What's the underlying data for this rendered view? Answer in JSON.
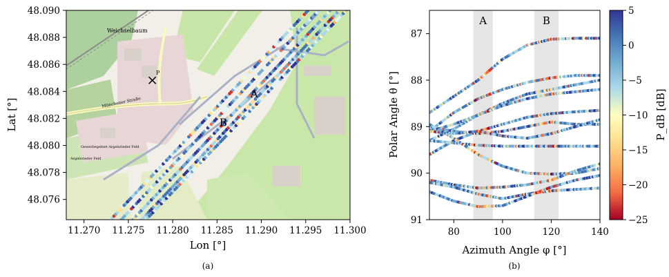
{
  "panel_a": {
    "caption": "(a)",
    "annotations": [
      "A",
      "B"
    ],
    "map_labels": [
      "Weichselbaum",
      "Münchener Straße",
      "Gewerbegebiet Argelsrieder Feld",
      "Argelsrieder Feld",
      "P"
    ]
  },
  "panel_b": {
    "caption": "(b)",
    "shaded_regions": [
      {
        "label": "A",
        "phi_range": [
          88,
          96
        ]
      },
      {
        "label": "B",
        "phi_range": [
          113,
          123
        ]
      }
    ]
  },
  "colors": {
    "marker": "#e8231d",
    "shade": "#e5e5e5",
    "map_green": "#c9e7a8",
    "map_residential": "#e7d7d7",
    "runway": "#aab0c6"
  },
  "chart_data": [
    {
      "type": "scatter",
      "subplot": "a",
      "xlabel": "Lon [°]",
      "ylabel": "Lat [°]",
      "xlim": [
        11.268,
        11.3
      ],
      "ylim": [
        48.0745,
        48.09
      ],
      "x_ticks": [
        "11.270",
        "11.275",
        "11.280",
        "11.285",
        "11.290",
        "11.295",
        "11.300"
      ],
      "y_ticks": [
        "48.076",
        "48.078",
        "48.080",
        "48.082",
        "48.084",
        "48.086",
        "48.088",
        "48.090"
      ],
      "grid": false,
      "colormap": "RdYlBu",
      "receiver": {
        "lon": 11.2777,
        "lat": 48.0848,
        "marker": "×"
      },
      "annotations": [
        {
          "text": "A",
          "lon": 11.2892,
          "lat": 48.0838
        },
        {
          "text": "B",
          "lon": 11.2857,
          "lat": 48.0817
        }
      ],
      "tracks": [
        {
          "lon": [
            11.2755,
            11.2985
          ],
          "lat": [
            48.0745,
            48.0905
          ]
        },
        {
          "lon": [
            11.2765,
            11.2995
          ],
          "lat": [
            48.0745,
            48.0905
          ]
        },
        {
          "lon": [
            11.277,
            11.3
          ],
          "lat": [
            48.0745,
            48.0903
          ]
        },
        {
          "lon": [
            11.2742,
            11.2972
          ],
          "lat": [
            48.0745,
            48.0905
          ]
        },
        {
          "lon": [
            11.273,
            11.296
          ],
          "lat": [
            48.0745,
            48.0905
          ]
        }
      ]
    },
    {
      "type": "scatter",
      "subplot": "b",
      "xlabel": "Azimuth Angle φ [°]",
      "ylabel": "Polar Angle θ [°]",
      "xlim": [
        70,
        140
      ],
      "ylim": [
        91,
        86.5
      ],
      "y_inverted": true,
      "x_ticks": [
        80,
        100,
        120,
        140
      ],
      "y_ticks": [
        87,
        88,
        89,
        90,
        91
      ],
      "grid": false,
      "colorbar": {
        "label": "P_dB [dB]",
        "range": [
          -25,
          5
        ],
        "ticks": [
          5,
          0,
          -5,
          -10,
          -15,
          -20,
          -25
        ],
        "colormap": "RdYlBu"
      },
      "series": [
        {
          "phi": [
            70,
            80,
            90,
            100,
            110,
            120,
            130,
            140
          ],
          "theta": [
            88.7,
            88.35,
            88.0,
            87.55,
            87.25,
            87.12,
            87.1,
            87.1
          ]
        },
        {
          "phi": [
            70,
            80,
            90,
            100,
            110,
            120,
            130,
            140
          ],
          "theta": [
            89.1,
            88.7,
            88.4,
            88.2,
            88.05,
            87.95,
            87.9,
            87.9
          ]
        },
        {
          "phi": [
            70,
            80,
            90,
            100,
            110,
            120,
            130,
            140
          ],
          "theta": [
            89.3,
            89.05,
            88.75,
            88.5,
            88.3,
            88.2,
            88.1,
            88.0
          ]
        },
        {
          "phi": [
            70,
            80,
            90,
            100,
            110,
            120,
            130,
            140
          ],
          "theta": [
            89.1,
            88.95,
            88.75,
            88.55,
            88.4,
            88.3,
            88.25,
            88.2
          ]
        },
        {
          "phi": [
            70,
            80,
            90,
            100,
            110,
            120,
            130,
            140
          ],
          "theta": [
            89.6,
            89.3,
            89.1,
            88.95,
            88.8,
            88.72,
            88.68,
            88.65
          ]
        },
        {
          "phi": [
            70,
            80,
            90,
            100,
            110,
            120,
            130,
            140
          ],
          "theta": [
            89.0,
            89.1,
            89.15,
            89.1,
            89.0,
            88.9,
            88.95,
            88.95
          ]
        },
        {
          "phi": [
            70,
            80,
            90,
            100,
            110,
            120,
            130,
            140
          ],
          "theta": [
            89.3,
            89.35,
            89.4,
            89.42,
            89.42,
            89.42,
            89.42,
            89.42
          ]
        },
        {
          "phi": [
            70,
            80,
            90,
            100,
            110,
            120,
            130,
            140
          ],
          "theta": [
            89.1,
            89.15,
            89.1,
            89.2,
            89.25,
            89.15,
            89.0,
            88.85
          ]
        },
        {
          "phi": [
            70,
            80,
            90,
            100,
            110,
            120,
            130,
            140
          ],
          "theta": [
            88.95,
            89.25,
            89.6,
            89.85,
            90.0,
            90.02,
            90.0,
            89.9
          ]
        },
        {
          "phi": [
            70,
            80,
            90,
            100,
            110,
            120,
            130,
            140
          ],
          "theta": [
            90.15,
            90.25,
            90.32,
            90.3,
            90.25,
            90.15,
            89.95,
            89.8
          ]
        },
        {
          "phi": [
            70,
            80,
            90,
            100,
            110,
            120,
            130,
            140
          ],
          "theta": [
            90.2,
            90.3,
            90.45,
            90.55,
            90.45,
            90.38,
            90.35,
            90.32
          ]
        },
        {
          "phi": [
            70,
            80,
            90,
            100,
            110,
            120,
            130,
            140
          ],
          "theta": [
            90.4,
            90.6,
            90.72,
            90.7,
            90.5,
            90.3,
            90.15,
            90.05
          ]
        }
      ]
    }
  ]
}
